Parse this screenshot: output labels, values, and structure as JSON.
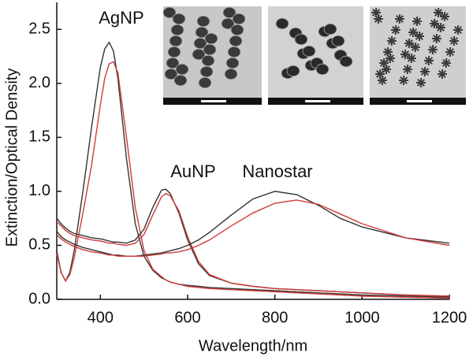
{
  "chart_data": {
    "type": "line",
    "xlabel": "Wavelength/nm",
    "ylabel": "Extinction/Optical Density",
    "annotations": [
      "AgNP",
      "AuNP",
      "Nanostar"
    ],
    "xlim": [
      300,
      1200
    ],
    "ylim": [
      0,
      2.75
    ],
    "xticks": [
      400,
      600,
      800,
      1000,
      1200
    ],
    "yticks": [
      {
        "value": 0,
        "label": "0.0"
      },
      {
        "value": 0.5,
        "label": "0.5"
      },
      {
        "value": 1,
        "label": "1.0"
      },
      {
        "value": 1.5,
        "label": "1.5"
      },
      {
        "value": 2,
        "label": "2.0"
      },
      {
        "value": 2.5,
        "label": "2.5"
      }
    ],
    "x": [
      300,
      310,
      320,
      330,
      340,
      360,
      380,
      400,
      410,
      420,
      430,
      440,
      460,
      480,
      500,
      520,
      540,
      550,
      560,
      580,
      600,
      625,
      650,
      700,
      750,
      800,
      850,
      900,
      950,
      1000,
      1100,
      1200
    ],
    "series": [
      {
        "color": "#333333",
        "values": [
          0.45,
          0.25,
          0.17,
          0.25,
          0.45,
          1.0,
          1.6,
          2.15,
          2.32,
          2.38,
          2.3,
          2.05,
          1.3,
          0.7,
          0.4,
          0.27,
          0.2,
          0.18,
          0.16,
          0.14,
          0.13,
          0.12,
          0.11,
          0.1,
          0.09,
          0.08,
          0.07,
          0.06,
          0.05,
          0.04,
          0.03,
          0.02
        ]
      },
      {
        "color": "#d03a3a",
        "values": [
          0.42,
          0.25,
          0.17,
          0.23,
          0.38,
          0.8,
          1.25,
          1.8,
          2.05,
          2.18,
          2.2,
          2.1,
          1.5,
          0.85,
          0.45,
          0.28,
          0.21,
          0.18,
          0.16,
          0.14,
          0.12,
          0.11,
          0.1,
          0.09,
          0.08,
          0.07,
          0.06,
          0.05,
          0.04,
          0.03,
          0.02,
          0.01
        ]
      },
      {
        "color": "#333333",
        "values": [
          0.75,
          0.7,
          0.66,
          0.63,
          0.61,
          0.59,
          0.57,
          0.56,
          0.55,
          0.54,
          0.53,
          0.53,
          0.52,
          0.55,
          0.65,
          0.85,
          1.01,
          1.02,
          0.98,
          0.8,
          0.55,
          0.33,
          0.22,
          0.15,
          0.12,
          0.1,
          0.09,
          0.08,
          0.07,
          0.06,
          0.04,
          0.03
        ]
      },
      {
        "color": "#d03a3a",
        "values": [
          0.72,
          0.68,
          0.64,
          0.61,
          0.59,
          0.57,
          0.55,
          0.54,
          0.53,
          0.52,
          0.52,
          0.51,
          0.5,
          0.52,
          0.6,
          0.78,
          0.95,
          0.98,
          0.96,
          0.82,
          0.58,
          0.35,
          0.23,
          0.15,
          0.12,
          0.1,
          0.09,
          0.08,
          0.07,
          0.06,
          0.04,
          0.03
        ]
      },
      {
        "color": "#333333",
        "values": [
          0.63,
          0.58,
          0.55,
          0.53,
          0.51,
          0.48,
          0.46,
          0.44,
          0.43,
          0.42,
          0.41,
          0.41,
          0.4,
          0.4,
          0.41,
          0.42,
          0.43,
          0.44,
          0.45,
          0.47,
          0.5,
          0.55,
          0.62,
          0.78,
          0.93,
          1.0,
          0.97,
          0.87,
          0.75,
          0.67,
          0.57,
          0.52
        ]
      },
      {
        "color": "#d03a3a",
        "values": [
          0.6,
          0.56,
          0.53,
          0.51,
          0.49,
          0.46,
          0.44,
          0.43,
          0.42,
          0.41,
          0.41,
          0.4,
          0.4,
          0.4,
          0.4,
          0.41,
          0.42,
          0.43,
          0.43,
          0.44,
          0.46,
          0.5,
          0.55,
          0.68,
          0.8,
          0.89,
          0.92,
          0.88,
          0.79,
          0.7,
          0.57,
          0.5
        ]
      }
    ]
  }
}
